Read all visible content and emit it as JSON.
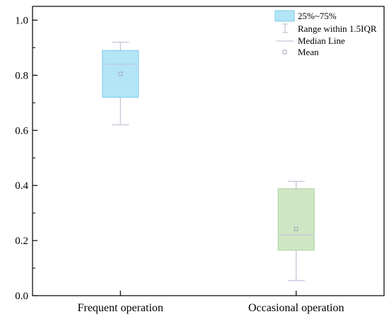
{
  "chart_data": {
    "type": "box",
    "categories": [
      "Frequent operation",
      "Occasional operation"
    ],
    "boxes": [
      {
        "category": "Frequent operation",
        "whisker_low": 0.62,
        "q1": 0.72,
        "median": 0.84,
        "q3": 0.89,
        "whisker_high": 0.92,
        "mean": 0.805,
        "color": "#b3e5f7",
        "stroke": "#7fcbea"
      },
      {
        "category": "Occasional operation",
        "whisker_low": 0.055,
        "q1": 0.165,
        "median": 0.22,
        "q3": 0.388,
        "whisker_high": 0.415,
        "mean": 0.242,
        "color": "#cfe6c4",
        "stroke": "#a9d29a"
      }
    ],
    "ylim": [
      0,
      1.05
    ],
    "yticks": [
      "0.0",
      "0.2",
      "0.4",
      "0.6",
      "0.8",
      "1.0"
    ],
    "legend": {
      "position": "top-right",
      "entries": [
        "25%~75%",
        "Range within 1.5IQR",
        "Median Line",
        "Mean"
      ]
    },
    "title": "",
    "xlabel": "",
    "ylabel": ""
  }
}
